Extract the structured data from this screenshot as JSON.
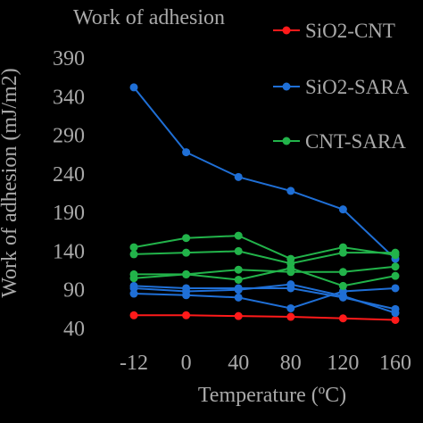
{
  "chart_data": {
    "type": "line",
    "title": "Work of adhesion",
    "xlabel": "Temperature (ºC)",
    "ylabel": "Work of adhesion (mJ/m2)",
    "categories": [
      "-12",
      "0",
      "40",
      "80",
      "120",
      "160"
    ],
    "y_ticks": [
      "390",
      "340",
      "290",
      "240",
      "190",
      "140",
      "90",
      "40"
    ],
    "ylim": [
      40,
      390
    ],
    "grid": false,
    "legend_position": "top-right",
    "legend": [
      {
        "label": "SiO2-CNT",
        "color": "#ff1a1a"
      },
      {
        "label": "SiO2-SARA",
        "color": "#1f6fd6"
      },
      {
        "label": "CNT-SARA",
        "color": "#22b34a"
      }
    ],
    "series": [
      {
        "group": "SiO2-CNT",
        "color": "#ff1a1a",
        "values": [
          57,
          57,
          56,
          55,
          53,
          51
        ]
      },
      {
        "group": "SiO2-SARA",
        "color": "#1f6fd6",
        "values": [
          352,
          268,
          236,
          218,
          194,
          130
        ]
      },
      {
        "group": "SiO2-SARA",
        "color": "#1f6fd6",
        "values": [
          92,
          88,
          90,
          97,
          82,
          60
        ]
      },
      {
        "group": "SiO2-SARA",
        "color": "#1f6fd6",
        "values": [
          85,
          83,
          80,
          66,
          88,
          92
        ]
      },
      {
        "group": "SiO2-SARA",
        "color": "#1f6fd6",
        "values": [
          95,
          92,
          92,
          92,
          80,
          65
        ]
      },
      {
        "group": "CNT-SARA",
        "color": "#22b34a",
        "values": [
          145,
          157,
          160,
          130,
          145,
          135
        ]
      },
      {
        "group": "CNT-SARA",
        "color": "#22b34a",
        "values": [
          136,
          138,
          140,
          124,
          138,
          138
        ]
      },
      {
        "group": "CNT-SARA",
        "color": "#22b34a",
        "values": [
          110,
          110,
          116,
          113,
          113,
          120
        ]
      },
      {
        "group": "CNT-SARA",
        "color": "#22b34a",
        "values": [
          105,
          110,
          103,
          118,
          95,
          108
        ]
      }
    ]
  }
}
